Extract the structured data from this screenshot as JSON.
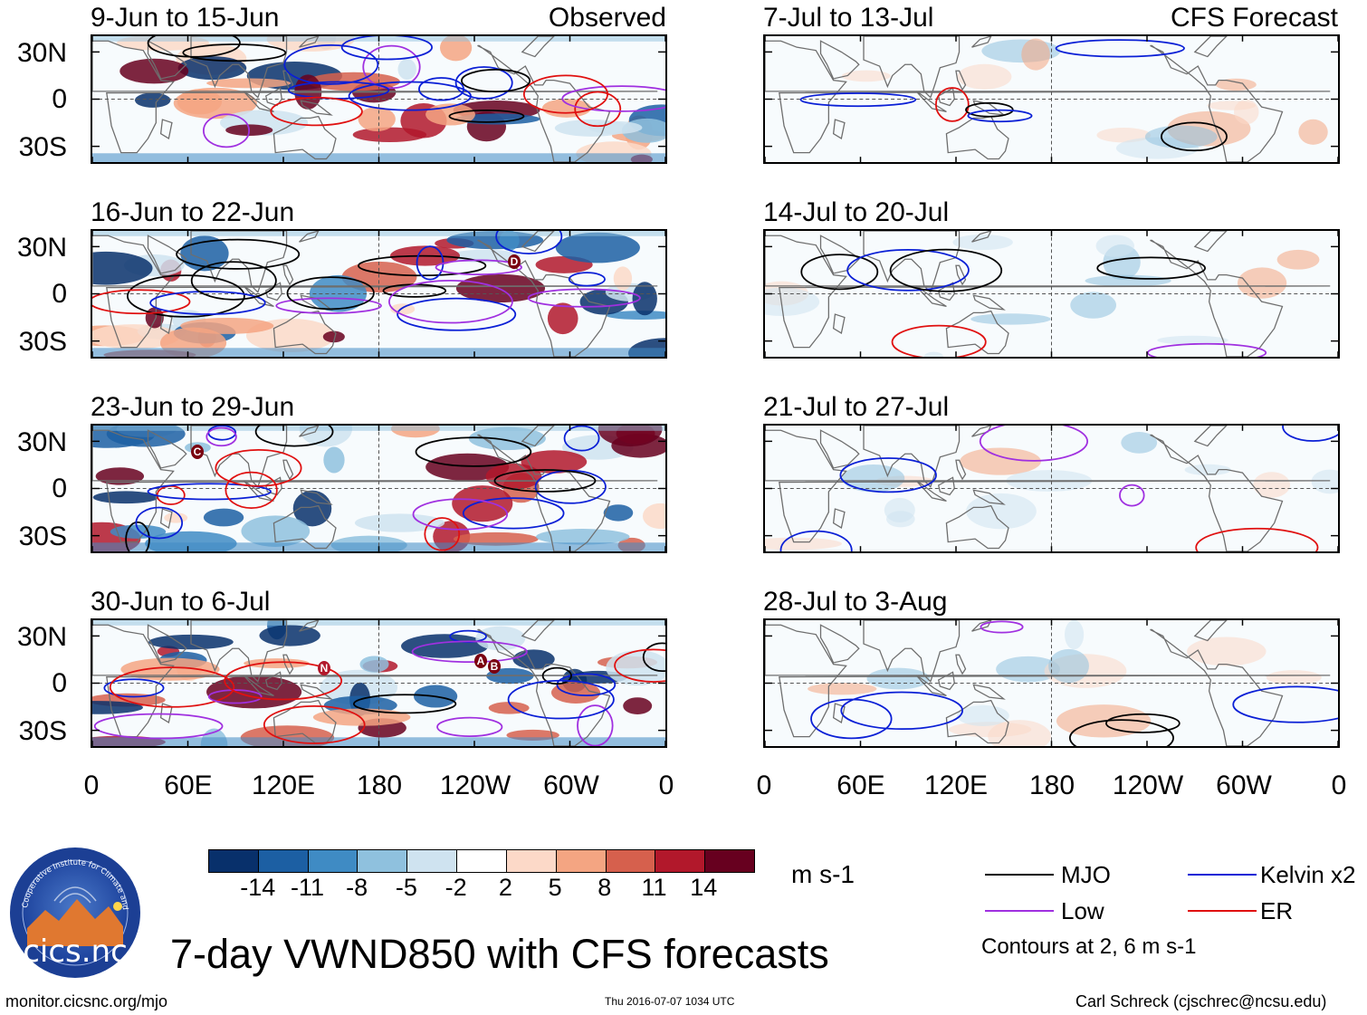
{
  "observed_label": "Observed",
  "forecast_label": "CFS Forecast",
  "lat_labels": [
    "30N",
    "0",
    "30S"
  ],
  "lon_labels": [
    "0",
    "60E",
    "120E",
    "180",
    "120W",
    "60W",
    "0"
  ],
  "panels_left": [
    {
      "title": "9-Jun to 15-Jun"
    },
    {
      "title": "16-Jun to 22-Jun"
    },
    {
      "title": "23-Jun to 29-Jun"
    },
    {
      "title": "30-Jun to 6-Jul"
    }
  ],
  "panels_right": [
    {
      "title": "7-Jul to 13-Jul"
    },
    {
      "title": "14-Jul to 20-Jul"
    },
    {
      "title": "21-Jul to 27-Jul"
    },
    {
      "title": "28-Jul to 3-Aug"
    }
  ],
  "storm_markers": [
    "D",
    "C",
    "N",
    "A",
    "B"
  ],
  "colorbar": {
    "colors": [
      "#08306b",
      "#1c5fa3",
      "#3f8bc4",
      "#8fc1de",
      "#cfe3f0",
      "#ffffff",
      "#fcd9c8",
      "#f4a582",
      "#d6604d",
      "#b2182b",
      "#67001f"
    ],
    "labels": [
      "-14",
      "-11",
      "-8",
      "-5",
      "-2",
      "2",
      "5",
      "8",
      "11",
      "14"
    ],
    "units": "m s-1"
  },
  "legend": {
    "items": [
      {
        "label": "MJO",
        "color": "#000000"
      },
      {
        "label": "Kelvin x2",
        "color": "#0a1fd6"
      },
      {
        "label": "Low",
        "color": "#a030e0"
      },
      {
        "label": "ER",
        "color": "#e01010"
      }
    ],
    "note": "Contours at 2, 6 m s-1"
  },
  "logo_text": "cics.nc",
  "logo_ring_text": "Cooperative Institute for Climate and Satellites",
  "main_title": "7-day VWND850 with CFS forecasts",
  "footer": {
    "left": "monitor.cicsnc.org/mjo",
    "center": "Thu 2016-07-07 1034 UTC",
    "right": "Carl Schreck (cjschrec@ncsu.edu)"
  }
}
